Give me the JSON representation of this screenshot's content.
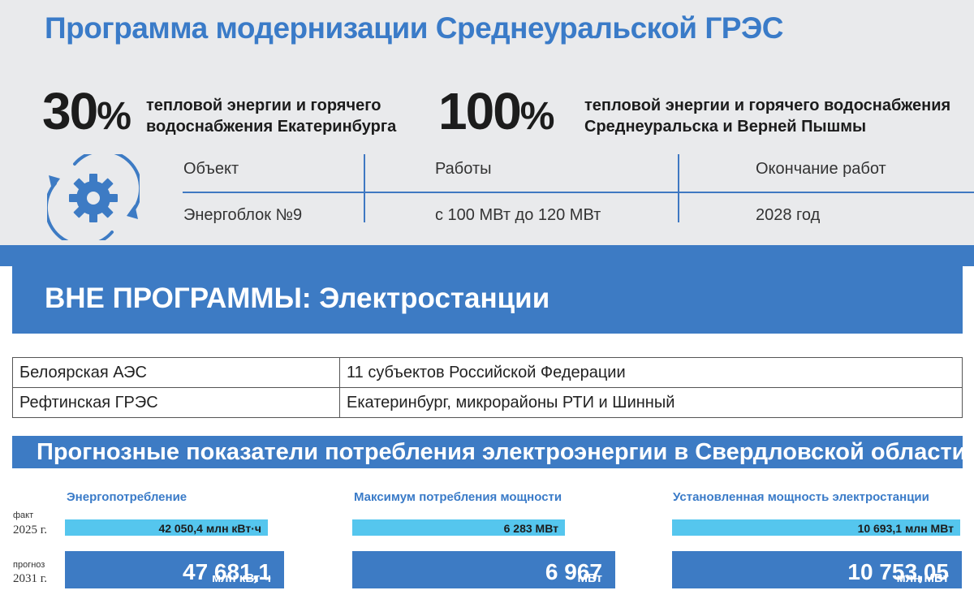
{
  "title": "Программа модернизации Среднеуральской ГРЭС",
  "stats": [
    {
      "value": "30",
      "unit": "%",
      "line1": "тепловой энергии и горячего",
      "line2": "водоснабжения Екатеринбурга"
    },
    {
      "value": "100",
      "unit": "%",
      "line1": "тепловой энергии и горячего водоснабжения",
      "line2": "Среднеуральска и Верней Пышмы"
    }
  ],
  "icon": "gear-refresh-icon",
  "program_table": {
    "headers": [
      "Объект",
      "Работы",
      "Окончание работ"
    ],
    "values": [
      "Энергоблок №9",
      "с 100 МВт до 120 МВт",
      "2028 год"
    ]
  },
  "outside_banner": "ВНЕ ПРОГРАММЫ:  Электростанции",
  "plants": [
    {
      "name": "Белоярская АЭС",
      "supplies": "11 субъектов Российской Федерации"
    },
    {
      "name": "Рефтинская ГРЭС",
      "supplies": "Екатеринбург, микрорайоны РТИ и Шинный"
    }
  ],
  "forecast": {
    "heading": "Прогнозные показатели потребления электроэнергии в Свердловской области",
    "fact_label": "факт",
    "fact_year": "2025 г.",
    "forecast_label": "прогноз",
    "forecast_year": "2031 г.",
    "metrics": [
      {
        "title": "Энергопотребление",
        "fact": "42 050,4 млн кВт·ч",
        "forecast_num": "47 681,1",
        "forecast_unit": "млн кВт·ч"
      },
      {
        "title": "Максимум потребления мощности",
        "fact": "6 283 МВт",
        "forecast_num": "6 967",
        "forecast_unit": "МВт"
      },
      {
        "title": "Установленная мощность электростанции",
        "fact": "10 693,1 млн МВт",
        "forecast_num": "10 753,05",
        "forecast_unit": "млн МВт"
      }
    ]
  },
  "colors": {
    "accent": "#3d7bc4",
    "title": "#3a7bc8",
    "fact_bar": "#55c6ee",
    "top_bg": "#e9eaec"
  }
}
